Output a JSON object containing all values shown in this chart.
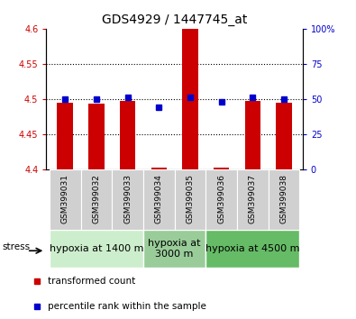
{
  "title": "GDS4929 / 1447745_at",
  "samples": [
    "GSM399031",
    "GSM399032",
    "GSM399033",
    "GSM399034",
    "GSM399035",
    "GSM399036",
    "GSM399037",
    "GSM399038"
  ],
  "bar_bottom": 4.4,
  "bar_tops": [
    4.495,
    4.493,
    4.497,
    4.402,
    4.601,
    4.402,
    4.497,
    4.495
  ],
  "percentile_ranks": [
    50,
    50,
    51,
    44,
    51,
    48,
    51,
    50
  ],
  "ylim_left": [
    4.4,
    4.6
  ],
  "ylim_right": [
    0,
    100
  ],
  "yticks_left": [
    4.4,
    4.45,
    4.5,
    4.55,
    4.6
  ],
  "yticks_right": [
    0,
    25,
    50,
    75,
    100
  ],
  "ytick_labels_right": [
    "0",
    "25",
    "50",
    "75",
    "100%"
  ],
  "bar_color": "#cc0000",
  "dot_color": "#0000cc",
  "bar_width": 0.5,
  "bg_color": "#ffffff",
  "groups": [
    {
      "label": "hypoxia at 1400 m",
      "indices": [
        0,
        1,
        2
      ],
      "color": "#cceecc"
    },
    {
      "label": "hypoxia at\n3000 m",
      "indices": [
        3,
        4
      ],
      "color": "#99cc99"
    },
    {
      "label": "hypoxia at 4500 m",
      "indices": [
        5,
        6,
        7
      ],
      "color": "#66bb66"
    }
  ],
  "stress_label": "stress",
  "legend_red": "transformed count",
  "legend_blue": "percentile rank within the sample",
  "title_fontsize": 10,
  "tick_label_fontsize": 7,
  "sample_fontsize": 6.5,
  "group_fontsize": 8,
  "legend_fontsize": 7.5
}
